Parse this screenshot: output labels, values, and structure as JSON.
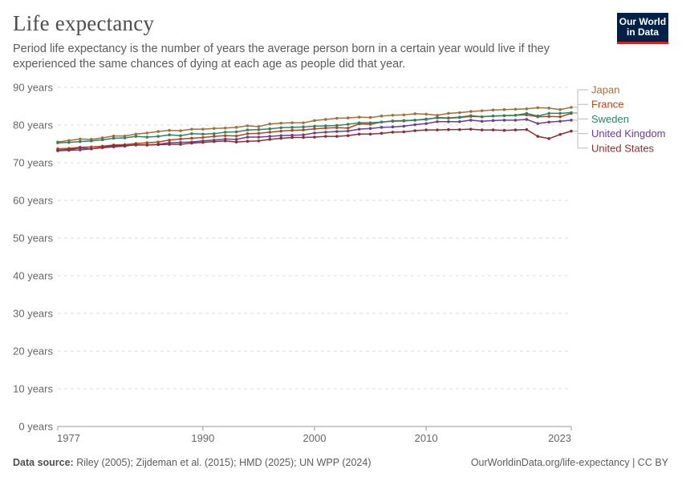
{
  "header": {
    "title": "Life expectancy",
    "subtitle": "Period life expectancy is the number of years the average person born in a certain year would live if they experienced the same chances of dying at each age as people did that year."
  },
  "logo": {
    "line1": "Our World",
    "line2": "in Data"
  },
  "footer": {
    "source_label": "Data source:",
    "source_text": "Riley (2005); Zijdeman et al. (2015); HMD (2025); UN WPP (2024)",
    "url_license": "OurWorldinData.org/life-expectancy | CC BY"
  },
  "chart_data": {
    "type": "line",
    "x": [
      1977,
      1978,
      1979,
      1980,
      1981,
      1982,
      1983,
      1984,
      1985,
      1986,
      1987,
      1988,
      1989,
      1990,
      1991,
      1992,
      1993,
      1994,
      1995,
      1996,
      1997,
      1998,
      1999,
      2000,
      2001,
      2002,
      2003,
      2004,
      2005,
      2006,
      2007,
      2008,
      2009,
      2010,
      2011,
      2012,
      2013,
      2014,
      2015,
      2016,
      2017,
      2018,
      2019,
      2020,
      2021,
      2022,
      2023
    ],
    "xticks": [
      "1977",
      "1990",
      "2000",
      "2010",
      "2023"
    ],
    "xtick_values": [
      1977,
      1990,
      2000,
      2010,
      2023
    ],
    "ylim": [
      0,
      90
    ],
    "yticks": [
      "0 years",
      "10 years",
      "20 years",
      "30 years",
      "40 years",
      "50 years",
      "60 years",
      "70 years",
      "80 years",
      "90 years"
    ],
    "ytick_values": [
      0,
      10,
      20,
      30,
      40,
      50,
      60,
      70,
      80,
      90
    ],
    "grid": true,
    "legend_position": "right",
    "series": [
      {
        "name": "Japan",
        "color": "#a2703b",
        "values": [
          75.5,
          75.9,
          76.3,
          76.2,
          76.6,
          77.1,
          77.1,
          77.6,
          77.9,
          78.3,
          78.6,
          78.5,
          78.9,
          78.9,
          79.1,
          79.2,
          79.4,
          79.8,
          79.6,
          80.3,
          80.5,
          80.6,
          80.6,
          81.2,
          81.5,
          81.8,
          81.9,
          82.1,
          82.0,
          82.4,
          82.6,
          82.7,
          83.0,
          82.9,
          82.6,
          83.1,
          83.3,
          83.6,
          83.8,
          84.0,
          84.1,
          84.2,
          84.3,
          84.6,
          84.5,
          84.1,
          84.7
        ]
      },
      {
        "name": "France",
        "color": "#b5461a",
        "values": [
          73.7,
          73.8,
          74.1,
          74.2,
          74.4,
          74.7,
          74.8,
          75.1,
          75.3,
          75.5,
          76.0,
          76.3,
          76.5,
          76.7,
          77.0,
          77.2,
          77.1,
          77.7,
          77.8,
          78.1,
          78.4,
          78.6,
          78.7,
          79.0,
          79.2,
          79.3,
          79.2,
          80.3,
          80.2,
          80.8,
          81.1,
          81.2,
          81.3,
          81.5,
          82.0,
          81.9,
          82.1,
          82.5,
          82.2,
          82.4,
          82.5,
          82.6,
          82.7,
          82.2,
          82.3,
          82.2,
          83.1
        ]
      },
      {
        "name": "Sweden",
        "color": "#2c8465",
        "values": [
          75.3,
          75.4,
          75.6,
          75.8,
          76.1,
          76.5,
          76.6,
          77.0,
          76.8,
          77.0,
          77.4,
          77.2,
          77.7,
          77.6,
          77.7,
          78.1,
          78.2,
          78.7,
          78.8,
          79.0,
          79.3,
          79.4,
          79.5,
          79.7,
          79.8,
          79.9,
          80.2,
          80.6,
          80.6,
          80.8,
          81.0,
          81.1,
          81.3,
          81.6,
          81.9,
          81.8,
          82.0,
          82.3,
          82.2,
          82.4,
          82.5,
          82.6,
          83.1,
          82.4,
          83.1,
          83.1,
          83.3
        ]
      },
      {
        "name": "United Kingdom",
        "color": "#6d3e91",
        "values": [
          73.2,
          73.3,
          73.4,
          73.7,
          74.0,
          74.2,
          74.4,
          74.8,
          74.7,
          74.9,
          75.3,
          75.4,
          75.5,
          75.8,
          76.0,
          76.3,
          76.2,
          76.8,
          76.8,
          77.0,
          77.2,
          77.3,
          77.4,
          77.9,
          78.1,
          78.3,
          78.4,
          78.9,
          79.1,
          79.4,
          79.5,
          79.7,
          80.1,
          80.4,
          80.9,
          80.9,
          80.9,
          81.3,
          81.0,
          81.2,
          81.3,
          81.3,
          81.5,
          80.4,
          80.8,
          81.0,
          81.3
        ]
      },
      {
        "name": "United States",
        "color": "#883039",
        "values": [
          73.3,
          73.5,
          73.9,
          73.7,
          74.1,
          74.5,
          74.6,
          74.7,
          74.7,
          74.8,
          74.9,
          74.9,
          75.2,
          75.4,
          75.6,
          75.8,
          75.5,
          75.7,
          75.8,
          76.2,
          76.5,
          76.7,
          76.7,
          76.8,
          77.0,
          77.0,
          77.2,
          77.6,
          77.6,
          77.8,
          78.1,
          78.2,
          78.5,
          78.7,
          78.7,
          78.8,
          78.8,
          78.9,
          78.7,
          78.7,
          78.6,
          78.7,
          78.8,
          77.0,
          76.4,
          77.5,
          78.4
        ]
      }
    ]
  }
}
